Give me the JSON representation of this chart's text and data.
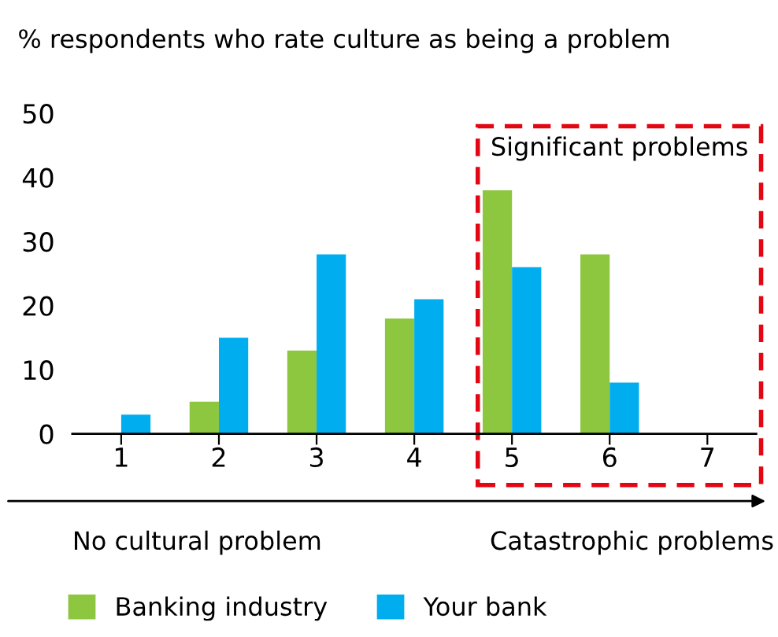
{
  "chart_data": {
    "type": "bar",
    "title": "% respondents who rate culture as being a problem",
    "categories": [
      "1",
      "2",
      "3",
      "4",
      "5",
      "6",
      "7"
    ],
    "series": [
      {
        "name": "Banking industry",
        "color": "#8dc63f",
        "values": [
          0,
          5,
          13,
          18,
          38,
          28,
          0
        ]
      },
      {
        "name": "Your bank",
        "color": "#00aeef",
        "values": [
          3,
          15,
          28,
          21,
          26,
          8,
          0
        ]
      }
    ],
    "ylim": [
      0,
      50
    ],
    "yticks": [
      0,
      10,
      20,
      30,
      40,
      50
    ],
    "grid": false,
    "legend": "bottom",
    "annotations": [
      "No cultural problem",
      "Catastrophic problems",
      "Significant problems"
    ]
  }
}
